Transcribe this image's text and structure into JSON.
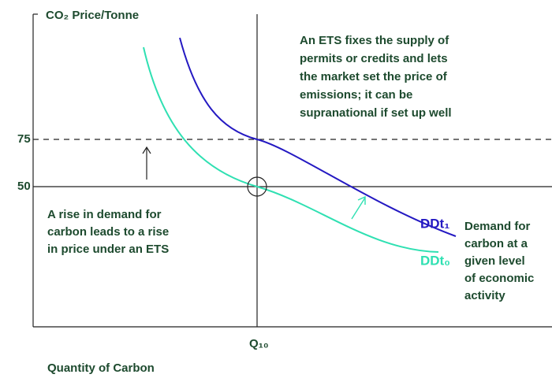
{
  "axes": {
    "y_label": "CO₂ Price/Tonne",
    "x_label": "Quantity of Carbon",
    "y_marks": [
      "75",
      "50"
    ],
    "x_mark": "Q₁₀"
  },
  "curves": [
    {
      "label": "DDt₁"
    },
    {
      "label": "DDt₀"
    }
  ],
  "notes": {
    "ets": [
      "An ETS fixes the supply of",
      "permits or credits and lets",
      "the market set the price of",
      "emissions; it can be",
      "supranational if set up well"
    ],
    "rise": [
      "A rise in demand for",
      "carbon leads to a rise",
      "in price under an ETS"
    ],
    "demand": [
      "Demand for",
      "carbon at a",
      "given level",
      "of economic",
      "activity"
    ]
  }
}
